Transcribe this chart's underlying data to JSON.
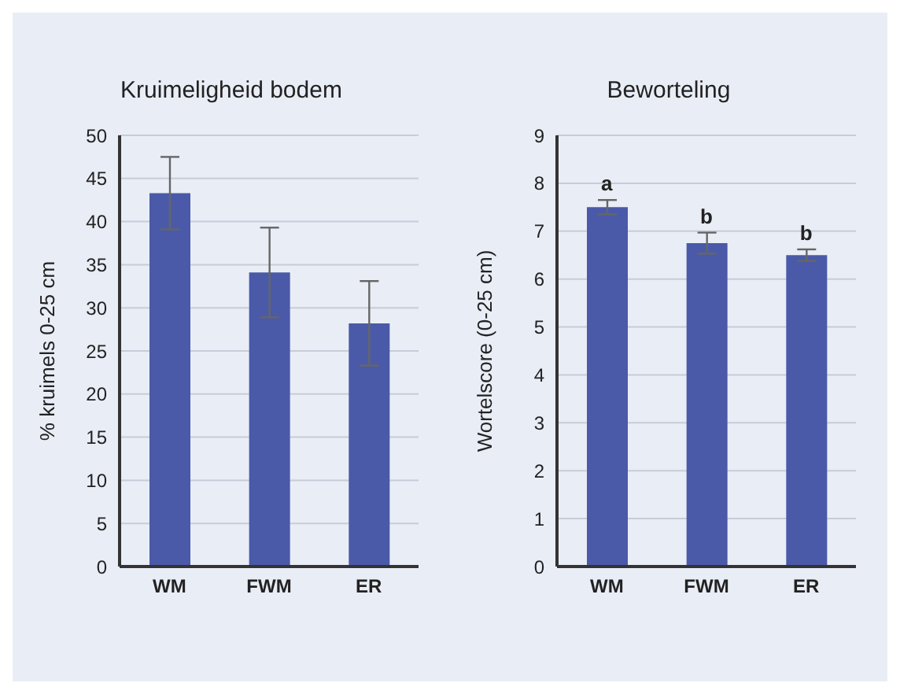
{
  "chart_data": [
    {
      "type": "bar",
      "title": "Kruimeligheid bodem",
      "ylabel": "% kruimels 0-25 cm",
      "categories": [
        "WM",
        "FWM",
        "ER"
      ],
      "values": [
        43.3,
        34.1,
        28.2
      ],
      "errors": [
        4.2,
        5.2,
        4.9
      ],
      "color": "#4a5aa8",
      "ylim": [
        0,
        50
      ],
      "yticks": [
        0,
        5,
        10,
        15,
        20,
        25,
        30,
        35,
        40,
        45,
        50
      ],
      "grid": "y"
    },
    {
      "type": "bar",
      "title": "Beworteling",
      "ylabel": "Wortelscore (0-25 cm)",
      "categories": [
        "WM",
        "FWM",
        "ER"
      ],
      "values": [
        7.5,
        6.75,
        6.5
      ],
      "errors": [
        0.15,
        0.22,
        0.12
      ],
      "color": "#4a5aa8",
      "ylim": [
        0,
        9
      ],
      "yticks": [
        0,
        1,
        2,
        3,
        4,
        5,
        6,
        7,
        8,
        9
      ],
      "grid": "y",
      "annotations": [
        {
          "text": "a",
          "x": "WM",
          "y": 7.5
        },
        {
          "text": "b",
          "x": "FWM",
          "y": 6.75
        },
        {
          "text": "b",
          "x": "ER",
          "y": 6.5
        }
      ]
    }
  ]
}
